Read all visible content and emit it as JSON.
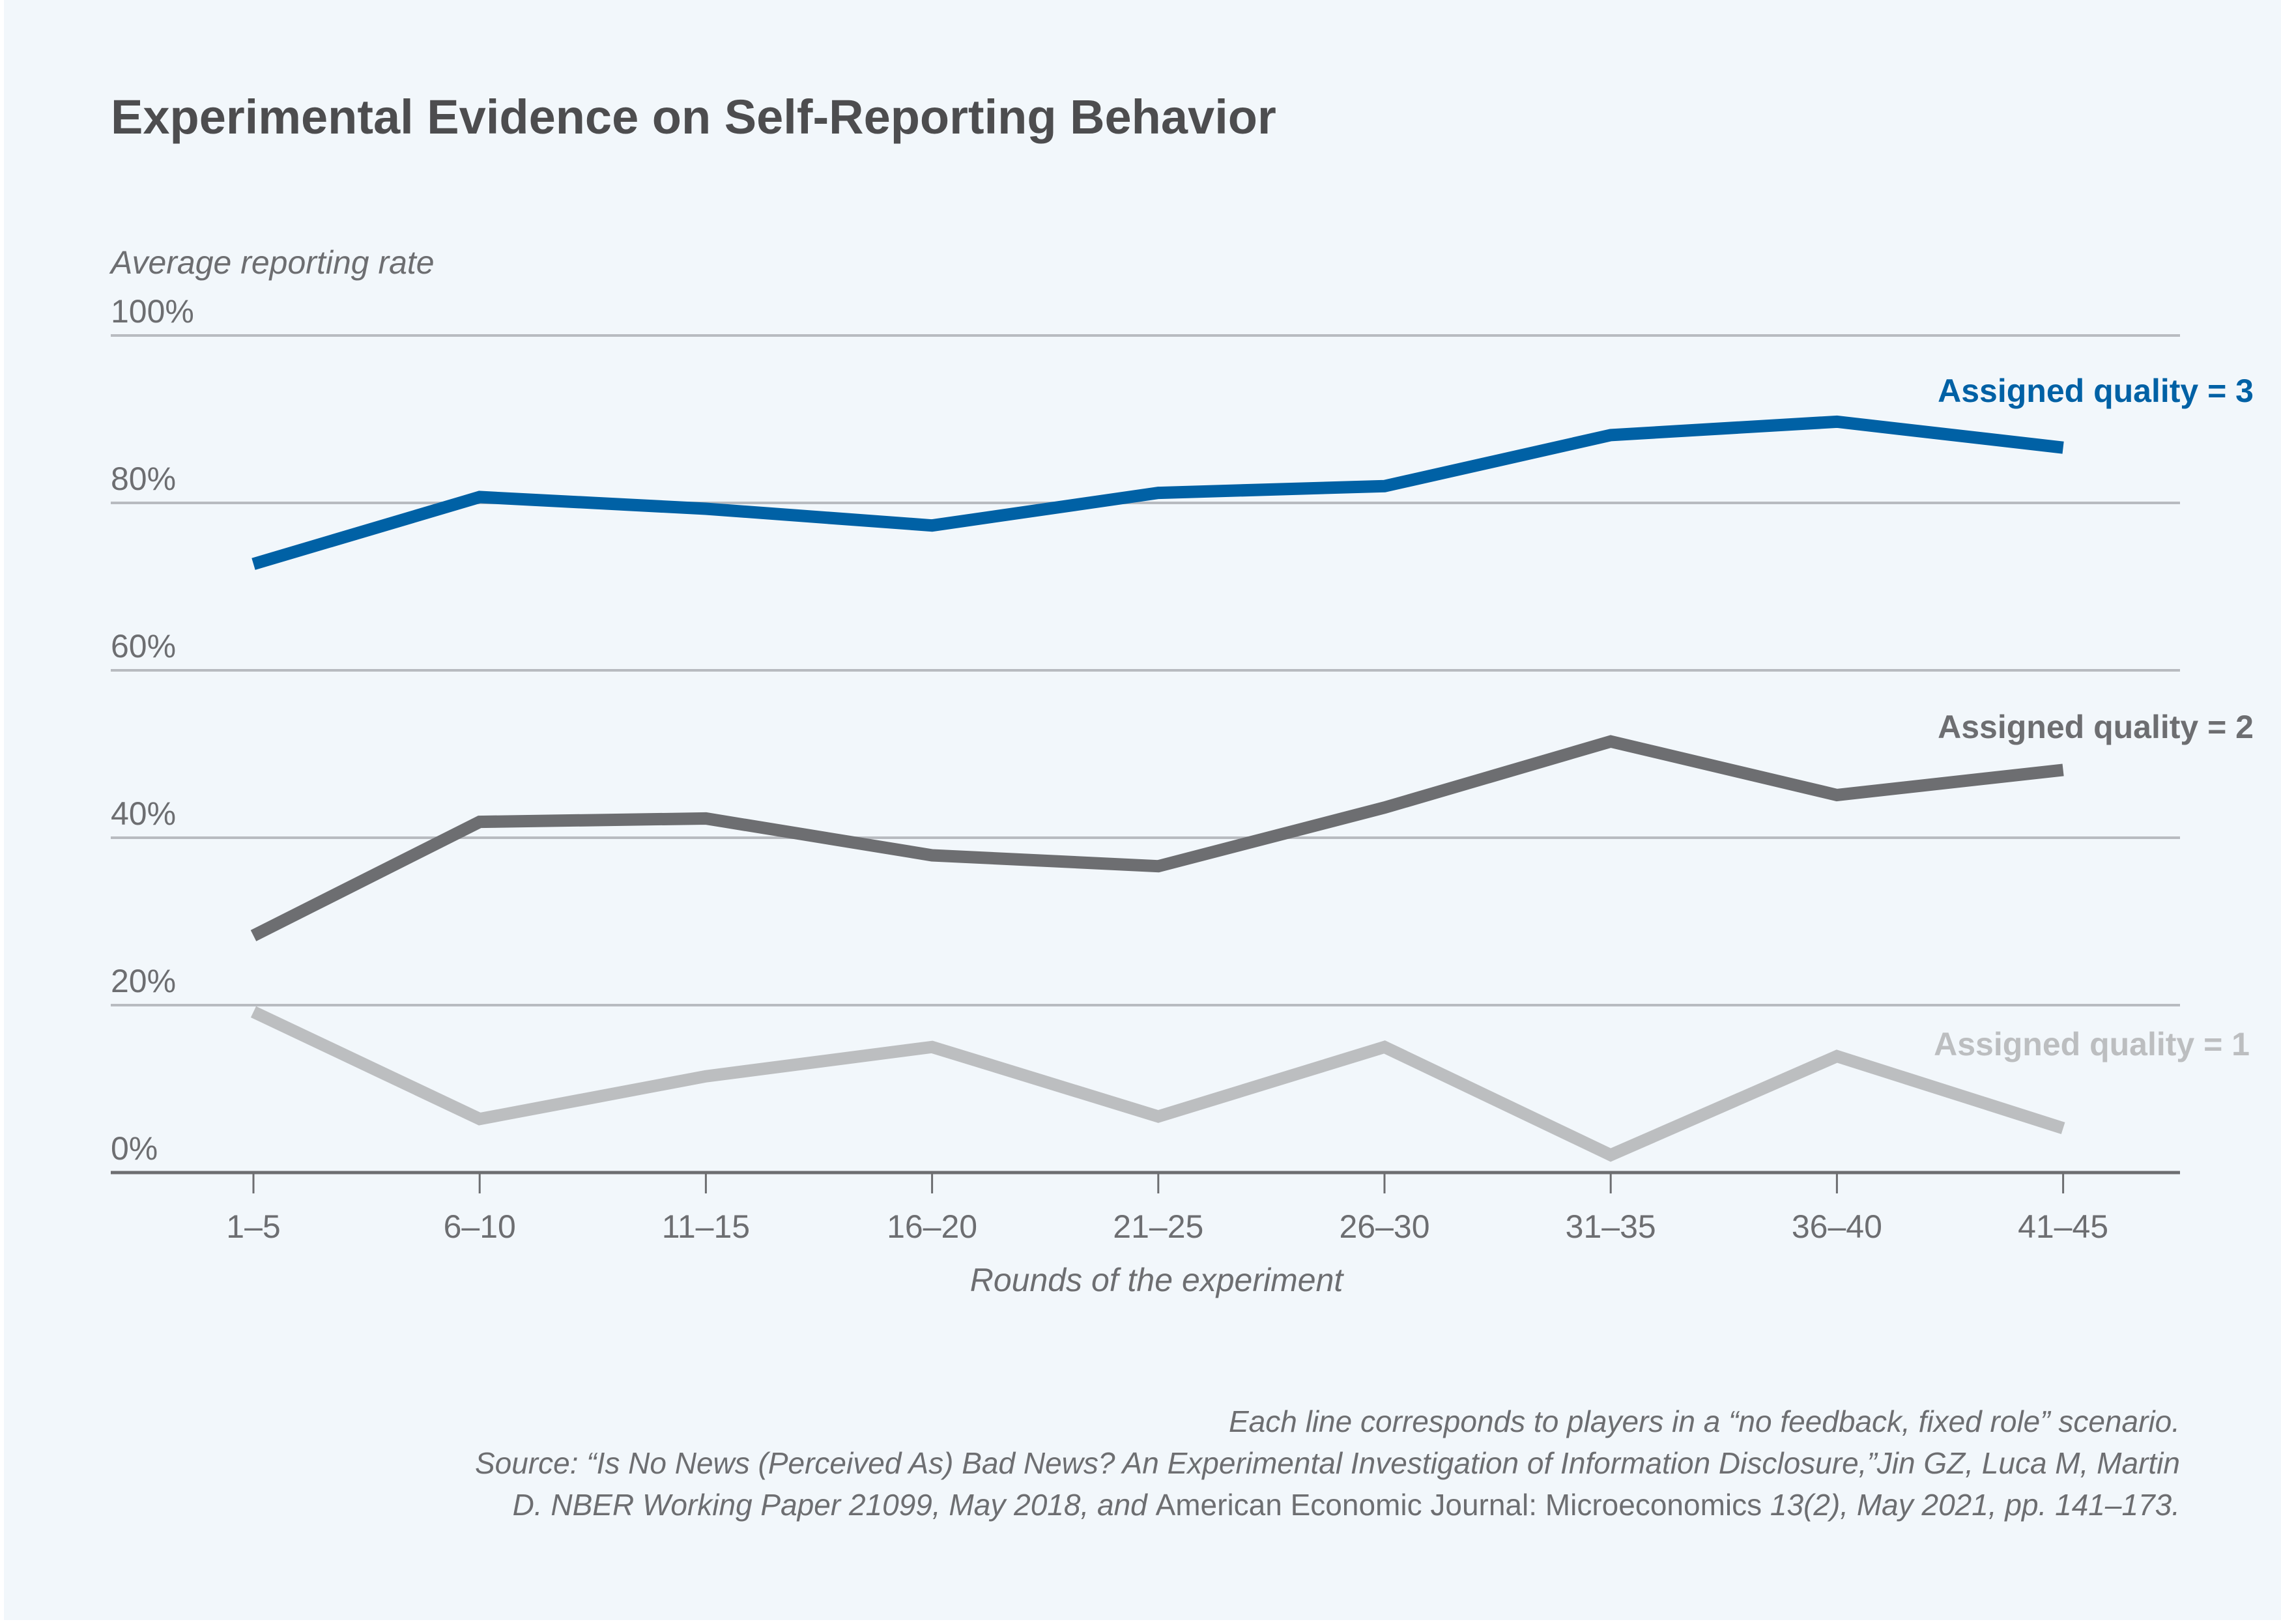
{
  "chart_data": {
    "type": "line",
    "title": "Experimental Evidence on Self-Reporting Behavior",
    "ylabel": "Average reporting rate",
    "xlabel": "Rounds of the experiment",
    "ylim": [
      0,
      100
    ],
    "yticks": [
      0,
      20,
      40,
      60,
      80,
      100
    ],
    "ytick_labels": [
      "0%",
      "20%",
      "40%",
      "60%",
      "80%",
      "100%"
    ],
    "grid": true,
    "categories": [
      "1–5",
      "6–10",
      "11–15",
      "16–20",
      "21–25",
      "26–30",
      "31–35",
      "36–40",
      "41–45"
    ],
    "series": [
      {
        "name": "Assigned quality = 3",
        "color": "#0061a5",
        "values": [
          72.7,
          80.7,
          79.3,
          77.3,
          81.2,
          82.0,
          88.1,
          89.7,
          86.6
        ]
      },
      {
        "name": "Assigned quality = 2",
        "color": "#6d6e71",
        "values": [
          28.3,
          41.9,
          42.3,
          37.9,
          36.6,
          43.6,
          51.5,
          45.1,
          48.1
        ]
      },
      {
        "name": "Assigned quality = 1",
        "color": "#bcbec0",
        "values": [
          19.2,
          6.4,
          11.5,
          15.0,
          6.7,
          15.0,
          2.1,
          13.9,
          5.3
        ]
      }
    ],
    "legend": "direct-labels-right",
    "notes": {
      "line1": "Each line corresponds to players in a “no feedback, fixed role” scenario.",
      "line2": "Source: “Is No News (Perceived As) Bad News? An Experimental Investigation of Information Disclosure,”Jin GZ, Luca M, Martin",
      "line3_a": "D. NBER Working Paper 21099, May 2018, and ",
      "line3_b": "American Economic Journal: Microeconomics",
      "line3_c": " 13(2), May 2021, pp. 141–173."
    }
  },
  "colors": {
    "background": "#f2f7fb",
    "title": "#4d4d4f",
    "text": "#6d6e71",
    "grid": "#b8bbc0"
  }
}
